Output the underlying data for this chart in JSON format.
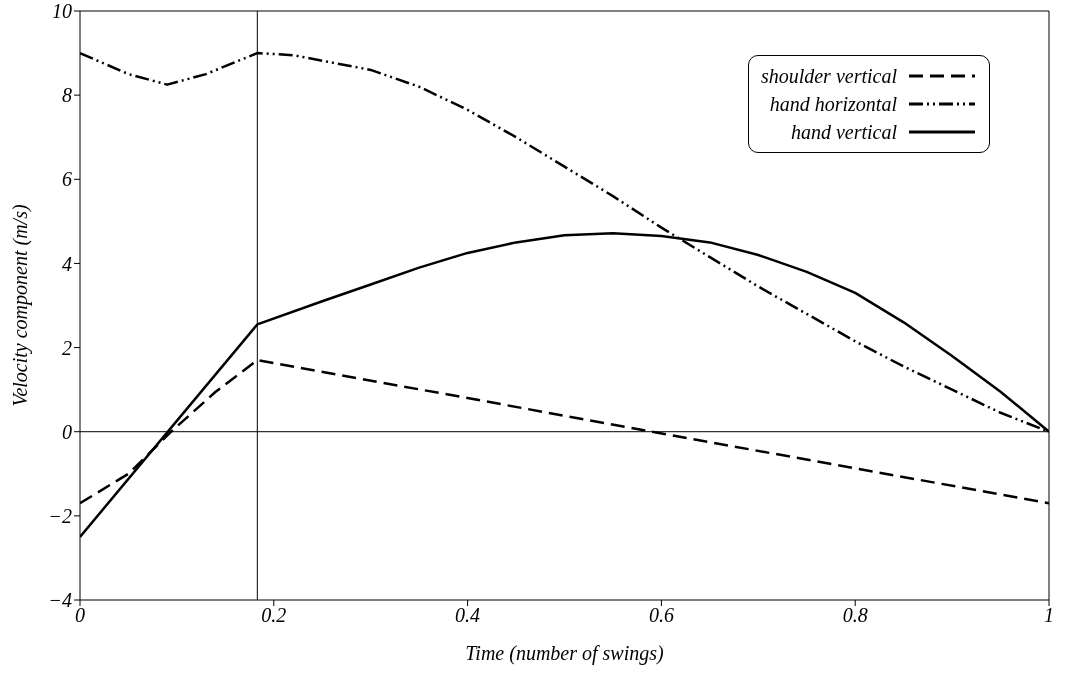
{
  "chart_data": {
    "type": "line",
    "xlabel": "Time (number of swings)",
    "ylabel": "Velocity component (m/s)",
    "xlim": [
      0,
      1
    ],
    "xticks": [
      0,
      0.2,
      0.4,
      0.6,
      0.8,
      1
    ],
    "ylim": [
      -4,
      10
    ],
    "yticks": [
      {
        "value": -4,
        "label": "−4"
      },
      {
        "value": -2,
        "label": "−2"
      },
      0,
      2,
      4,
      6,
      8,
      10
    ],
    "legend": "top right",
    "marker": "none",
    "ref_lines": [
      {
        "axis": "x",
        "value": 0.183,
        "color": "#000000"
      },
      {
        "axis": "y",
        "value": 0,
        "color": "#000000"
      }
    ],
    "series": [
      {
        "name": "shoulder vertical",
        "color": "#000000",
        "line_style": "dashed",
        "x": [
          0,
          0.05,
          0.094,
          0.14,
          0.183,
          0.4,
          0.59,
          0.8,
          1
        ],
        "values": [
          -1.7,
          -1.0,
          0,
          0.95,
          1.7,
          0.8,
          0,
          -0.87,
          -1.7
        ]
      },
      {
        "name": "hand horizontal",
        "color": "#000000",
        "line_style": "dotted",
        "x": [
          0,
          0.05,
          0.09,
          0.13,
          0.183,
          0.22,
          0.3,
          0.35,
          0.4,
          0.45,
          0.5,
          0.55,
          0.6,
          0.65,
          0.7,
          0.75,
          0.8,
          0.85,
          0.9,
          0.95,
          1
        ],
        "values": [
          9,
          8.5,
          8.25,
          8.5,
          9.0,
          8.95,
          8.6,
          8.2,
          7.65,
          7.0,
          6.3,
          5.6,
          4.85,
          4.15,
          3.45,
          2.8,
          2.15,
          1.55,
          1.0,
          0.45,
          0
        ]
      },
      {
        "name": "hand vertical",
        "color": "#000000",
        "line_style": "solid",
        "x": [
          0,
          0.183,
          0.25,
          0.3,
          0.35,
          0.4,
          0.45,
          0.5,
          0.55,
          0.6,
          0.65,
          0.7,
          0.75,
          0.8,
          0.85,
          0.9,
          0.95,
          1
        ],
        "values": [
          -2.5,
          2.55,
          3.1,
          3.5,
          3.9,
          4.25,
          4.5,
          4.67,
          4.72,
          4.65,
          4.5,
          4.2,
          3.8,
          3.3,
          2.6,
          1.8,
          0.95,
          0
        ]
      }
    ]
  }
}
